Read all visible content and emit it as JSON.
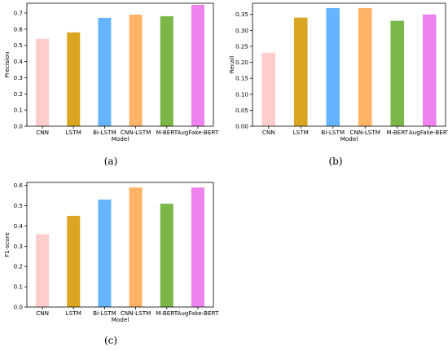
{
  "colors": [
    "#ffcccc",
    "#daa520",
    "#66b3ff",
    "#ffb366",
    "#7ab648",
    "#ee82ee"
  ],
  "chart_data": [
    {
      "type": "bar",
      "panel_label": "(a)",
      "categories": [
        "CNN",
        "LSTM",
        "Bi-LSTM",
        "CNN-LSTM",
        "M-BERT",
        "AugFake-BERT"
      ],
      "values": [
        0.54,
        0.58,
        0.67,
        0.69,
        0.68,
        0.75
      ],
      "xlabel": "Model",
      "ylabel": "Precision",
      "ylim": [
        0,
        0.76
      ],
      "yticks": [
        "0.0",
        "0.1",
        "0.2",
        "0.3",
        "0.4",
        "0.5",
        "0.6",
        "0.7"
      ],
      "ytick_values": [
        0,
        0.1,
        0.2,
        0.3,
        0.4,
        0.5,
        0.6,
        0.7
      ],
      "grid": false,
      "legend": "none"
    },
    {
      "type": "bar",
      "panel_label": "(b)",
      "categories": [
        "CNN",
        "LSTM",
        "Bi-LSTM",
        "CNN-LSTM",
        "M-BERT",
        "AugFake-BERT"
      ],
      "values": [
        0.23,
        0.34,
        0.37,
        0.37,
        0.33,
        0.35
      ],
      "xlabel": "Model",
      "ylabel": "Recall",
      "ylim": [
        0,
        0.385
      ],
      "yticks": [
        "0.00",
        "0.05",
        "0.10",
        "0.15",
        "0.20",
        "0.25",
        "0.30",
        "0.35"
      ],
      "ytick_values": [
        0,
        0.05,
        0.1,
        0.15,
        0.2,
        0.25,
        0.3,
        0.35
      ],
      "grid": false,
      "legend": "none"
    },
    {
      "type": "bar",
      "panel_label": "(c)",
      "categories": [
        "CNN",
        "LSTM",
        "Bi-LSTM",
        "CNN-LSTM",
        "M-BERT",
        "AugFake-BERT"
      ],
      "values": [
        0.36,
        0.45,
        0.53,
        0.59,
        0.51,
        0.59
      ],
      "xlabel": "Model",
      "ylabel": "F1-score",
      "ylim": [
        0,
        0.615
      ],
      "yticks": [
        "0.0",
        "0.1",
        "0.2",
        "0.3",
        "0.4",
        "0.5",
        "0.6"
      ],
      "ytick_values": [
        0,
        0.1,
        0.2,
        0.3,
        0.4,
        0.5,
        0.6
      ],
      "grid": false,
      "legend": "none"
    }
  ]
}
